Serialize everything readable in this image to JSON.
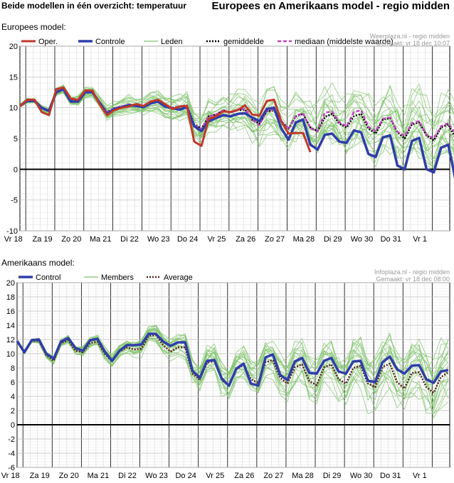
{
  "header": {
    "left_title": "Beide modellen in één overzicht: temperatuur",
    "right_title": "Europees en Amerikaans model - regio midden"
  },
  "colors": {
    "oper": "#c0392b",
    "control": "#2f3ea8",
    "members": "#7dc36a",
    "mean": "#000000",
    "median": "#c040c0",
    "average_dots": "#5a1f1f"
  },
  "chart_data": [
    {
      "type": "line",
      "panel_label": "Europees model:",
      "source_line1": "Weerplaza.nl - regio midden",
      "source_line2": "Gemaakt: vr 18 dec 10:07",
      "ylim": [
        -10,
        20
      ],
      "yticks": [
        20,
        15,
        10,
        5,
        0,
        -5,
        -10
      ],
      "x_labels": [
        "Vr 18",
        "Za 19",
        "Zo 20",
        "Ma 21",
        "Di 22",
        "Wo 23",
        "Do 24",
        "Vr 25",
        "Za 26",
        "Zo 27",
        "Ma 28",
        "Di 29",
        "Wo 30",
        "Do 31",
        "Vr 1"
      ],
      "legend": [
        {
          "name": "Oper.",
          "style": "oper"
        },
        {
          "name": "Controle",
          "style": "control"
        },
        {
          "name": "Leden",
          "style": "members"
        },
        {
          "name": "gemiddelde",
          "style": "mean"
        },
        {
          "name": "mediaan (middelste waarde)",
          "style": "median"
        }
      ],
      "series": [
        {
          "name": "Oper.",
          "style": "oper",
          "values": [
            10.2,
            11.3,
            11.3,
            9.3,
            8.8,
            13.0,
            13.3,
            11.5,
            11.3,
            12.8,
            12.8,
            10.5,
            8.8,
            9.6,
            10.0,
            10.2,
            10.6,
            10.3,
            11.0,
            11.3,
            10.6,
            9.8,
            10.2,
            10.3,
            4.5,
            3.8,
            8.2,
            8.6,
            9.4,
            9.3,
            9.6,
            10.4,
            8.9,
            8.7,
            11.1,
            11.3,
            7.8,
            5.8,
            5.9,
            5.9,
            2.8
          ]
        },
        {
          "name": "Controle",
          "style": "control",
          "values": [
            10.3,
            11.1,
            11.1,
            10.0,
            9.5,
            12.5,
            13.0,
            11.0,
            11.0,
            12.5,
            12.5,
            10.8,
            9.0,
            9.8,
            10.1,
            10.4,
            10.3,
            10.1,
            10.7,
            11.0,
            10.2,
            9.9,
            9.7,
            10.1,
            7.0,
            6.2,
            7.8,
            8.3,
            8.8,
            8.6,
            9.0,
            9.1,
            8.4,
            7.8,
            9.8,
            10.0,
            6.6,
            4.8,
            7.6,
            8.1,
            4.0,
            3.2,
            5.6,
            5.8,
            4.5,
            4.3,
            6.3,
            6.0,
            2.5,
            2.0,
            5.2,
            5.5,
            0.6,
            0.0,
            4.6,
            5.1,
            0.0,
            -0.5,
            3.5,
            4.0,
            -1.8
          ]
        },
        {
          "name": "gemiddelde",
          "style": "mean",
          "values": [
            10.3,
            11.1,
            11.1,
            9.9,
            9.4,
            12.6,
            13.0,
            11.2,
            11.1,
            12.5,
            12.5,
            10.8,
            9.3,
            9.9,
            10.2,
            10.5,
            10.5,
            10.3,
            10.9,
            11.1,
            10.3,
            10.0,
            10.2,
            10.4,
            7.3,
            6.6,
            8.6,
            8.9,
            9.6,
            9.2,
            9.6,
            9.7,
            8.0,
            7.4,
            9.4,
            9.6,
            7.8,
            6.6,
            8.6,
            9.0,
            6.8,
            6.2,
            8.5,
            9.0,
            7.4,
            6.8,
            8.6,
            9.0,
            6.6,
            5.8,
            8.1,
            8.3,
            6.0,
            5.0,
            7.3,
            7.6,
            5.5,
            4.7,
            6.8,
            7.3,
            5.0
          ]
        },
        {
          "name": "mediaan (middelste waarde)",
          "style": "median",
          "values": [
            10.3,
            11.1,
            11.1,
            9.9,
            9.4,
            12.6,
            13.0,
            11.2,
            11.1,
            12.5,
            12.5,
            10.8,
            9.3,
            9.9,
            10.2,
            10.5,
            10.5,
            10.3,
            10.9,
            11.1,
            10.3,
            10.0,
            10.2,
            10.4,
            7.2,
            6.5,
            8.6,
            8.9,
            9.6,
            9.2,
            9.7,
            9.8,
            8.0,
            7.2,
            9.5,
            9.7,
            7.9,
            6.5,
            8.7,
            9.1,
            6.7,
            6.2,
            9.2,
            9.4,
            7.6,
            7.0,
            9.3,
            9.6,
            6.9,
            6.2,
            8.2,
            8.4,
            6.1,
            5.4,
            7.5,
            7.8,
            5.6,
            5.0,
            7.0,
            7.5,
            5.8
          ]
        }
      ],
      "members_spread": [
        0.2,
        0.3,
        0.3,
        0.4,
        0.5,
        0.5,
        0.6,
        0.6,
        0.7,
        0.8,
        0.8,
        0.9,
        1.0,
        1.0,
        1.1,
        1.2,
        1.3,
        1.4,
        1.4,
        1.5,
        1.6,
        1.7,
        1.8,
        1.9,
        2.0,
        2.1,
        2.2,
        2.3,
        2.4,
        2.5,
        2.6,
        2.7,
        2.8,
        2.9,
        3.0,
        3.1,
        3.2,
        3.3,
        3.4,
        3.5,
        3.6,
        3.7,
        3.8,
        3.9,
        4.0,
        4.0,
        4.1,
        4.1,
        4.2,
        4.2,
        4.3,
        4.3,
        4.4,
        4.4,
        4.5,
        4.5,
        4.6,
        4.6,
        4.7,
        4.7,
        4.8
      ],
      "members_count": 22
    },
    {
      "type": "line",
      "panel_label": "Amerikaans model:",
      "source_line1": "Infoplaza.nl - regio midden",
      "source_line2": "Gemaakt: vr 18 dec 08:00",
      "ylim": [
        -6,
        20
      ],
      "yticks": [
        20,
        18,
        16,
        14,
        12,
        10,
        8,
        6,
        4,
        2,
        0,
        -2,
        -4,
        -6
      ],
      "x_labels": [
        "Vr 18",
        "Za 19",
        "Zo 20",
        "Ma 21",
        "Di 22",
        "Wo 23",
        "Do 24",
        "Vr 25",
        "Za 26",
        "Zo 27",
        "Ma 28",
        "Di 29",
        "Wo 30",
        "Do 31",
        "Vr 1"
      ],
      "legend": [
        {
          "name": "Control",
          "style": "control"
        },
        {
          "name": "Members",
          "style": "members"
        },
        {
          "name": "Average",
          "style": "average_dots"
        }
      ],
      "series": [
        {
          "name": "Control",
          "style": "control",
          "values": [
            11.8,
            10.2,
            11.9,
            12.0,
            10.0,
            9.3,
            11.7,
            12.2,
            10.8,
            10.4,
            11.9,
            12.1,
            10.3,
            9.0,
            10.4,
            11.2,
            11.2,
            11.3,
            12.8,
            12.8,
            11.7,
            11.1,
            11.6,
            11.6,
            7.6,
            6.6,
            9.0,
            9.1,
            6.5,
            5.5,
            7.9,
            8.6,
            5.8,
            5.5,
            9.5,
            9.9,
            7.0,
            6.3,
            8.9,
            9.4,
            7.3,
            7.2,
            9.0,
            9.4,
            7.5,
            7.2,
            8.9,
            9.0,
            6.2,
            6.0,
            8.8,
            9.6,
            7.8,
            7.2,
            8.3,
            8.4,
            6.4,
            5.9,
            7.5,
            7.7
          ]
        },
        {
          "name": "Average",
          "style": "average_dots",
          "values": [
            11.7,
            10.2,
            11.8,
            11.8,
            9.8,
            9.0,
            11.5,
            11.9,
            10.4,
            10.2,
            11.5,
            11.7,
            10.0,
            8.9,
            10.3,
            10.9,
            10.6,
            10.7,
            12.5,
            12.6,
            11.2,
            10.3,
            10.9,
            10.9,
            7.2,
            6.4,
            8.7,
            9.0,
            6.3,
            5.5,
            7.8,
            8.4,
            6.4,
            5.9,
            8.8,
            9.1,
            6.6,
            5.8,
            8.1,
            8.5,
            6.1,
            5.6,
            8.1,
            8.5,
            6.4,
            5.8,
            8.0,
            8.3,
            5.8,
            5.3,
            8.1,
            8.6,
            6.0,
            5.1,
            7.3,
            7.4,
            5.3,
            4.5,
            6.7,
            7.4
          ]
        }
      ],
      "members_spread": [
        0.2,
        0.3,
        0.3,
        0.4,
        0.4,
        0.5,
        0.5,
        0.6,
        0.6,
        0.7,
        0.7,
        0.8,
        0.8,
        0.9,
        0.9,
        1.0,
        1.0,
        1.1,
        1.2,
        1.3,
        1.3,
        1.4,
        1.5,
        1.6,
        1.7,
        1.8,
        1.9,
        2.0,
        2.1,
        2.2,
        2.3,
        2.4,
        2.5,
        2.6,
        2.6,
        2.7,
        2.8,
        2.8,
        2.9,
        3.0,
        3.0,
        3.1,
        3.2,
        3.2,
        3.3,
        3.4,
        3.4,
        3.5,
        3.6,
        3.6,
        3.7,
        3.8,
        3.8,
        3.9,
        4.0,
        4.0,
        4.1,
        4.2,
        4.2,
        4.3
      ],
      "members_count": 20
    }
  ]
}
